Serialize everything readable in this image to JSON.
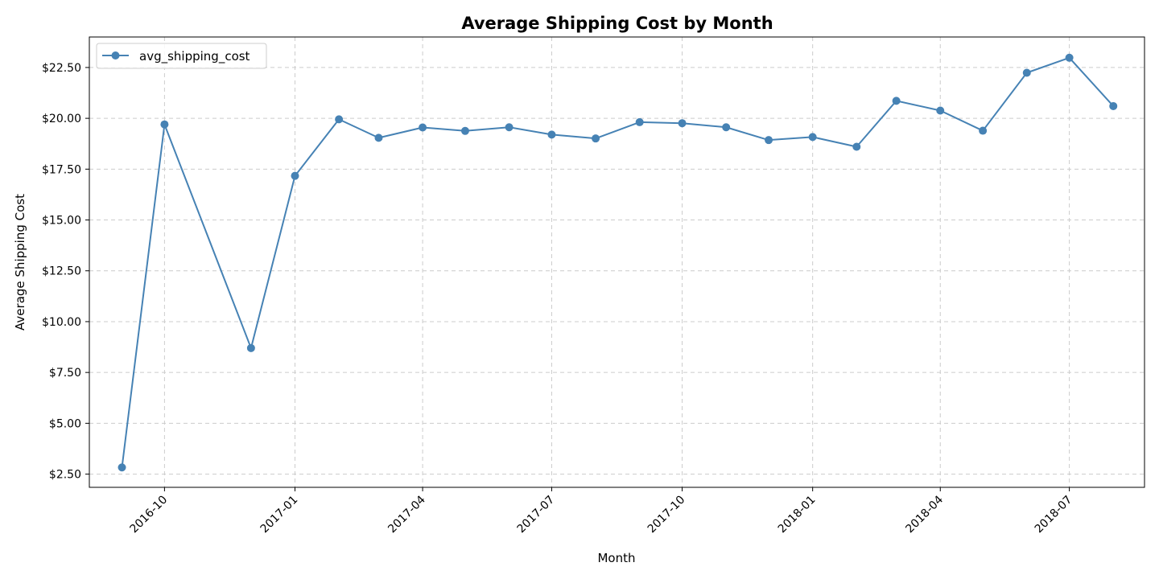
{
  "chart_data": {
    "type": "line",
    "title": "Average Shipping Cost by Month",
    "xlabel": "Month",
    "ylabel": "Average Shipping Cost",
    "ylim": [
      1.85,
      24.0
    ],
    "xlim": [
      "2016-08-09",
      "2018-08-23"
    ],
    "grid": true,
    "legend_position": "top-left",
    "color": "#4682b4",
    "y_ticks": [
      "$2.50",
      "$5.00",
      "$7.50",
      "$10.00",
      "$12.50",
      "$15.00",
      "$17.50",
      "$20.00",
      "$22.50"
    ],
    "y_tick_values": [
      2.5,
      5,
      7.5,
      10,
      12.5,
      15,
      17.5,
      20,
      22.5
    ],
    "x_ticks": [
      "2016-10",
      "2017-01",
      "2017-04",
      "2017-07",
      "2017-10",
      "2018-01",
      "2018-04",
      "2018-07"
    ],
    "x_tick_dates": [
      "2016-10-01",
      "2017-01-01",
      "2017-04-01",
      "2017-07-01",
      "2017-10-01",
      "2018-01-01",
      "2018-04-01",
      "2018-07-01"
    ],
    "series": [
      {
        "name": "avg_shipping_cost",
        "x": [
          "2016-09-01",
          "2016-10-01",
          "2016-12-01",
          "2017-01-01",
          "2017-02-01",
          "2017-03-01",
          "2017-04-01",
          "2017-05-01",
          "2017-06-01",
          "2017-07-01",
          "2017-08-01",
          "2017-09-01",
          "2017-10-01",
          "2017-11-01",
          "2017-12-01",
          "2018-01-01",
          "2018-02-01",
          "2018-03-01",
          "2018-04-01",
          "2018-05-01",
          "2018-06-01",
          "2018-07-01",
          "2018-08-01"
        ],
        "values": [
          2.83,
          19.7,
          8.7,
          17.17,
          19.95,
          19.04,
          19.55,
          19.38,
          19.56,
          19.2,
          19.01,
          19.81,
          19.76,
          19.56,
          18.93,
          19.08,
          18.6,
          20.86,
          20.38,
          19.39,
          22.24,
          22.98,
          20.6
        ]
      }
    ]
  }
}
